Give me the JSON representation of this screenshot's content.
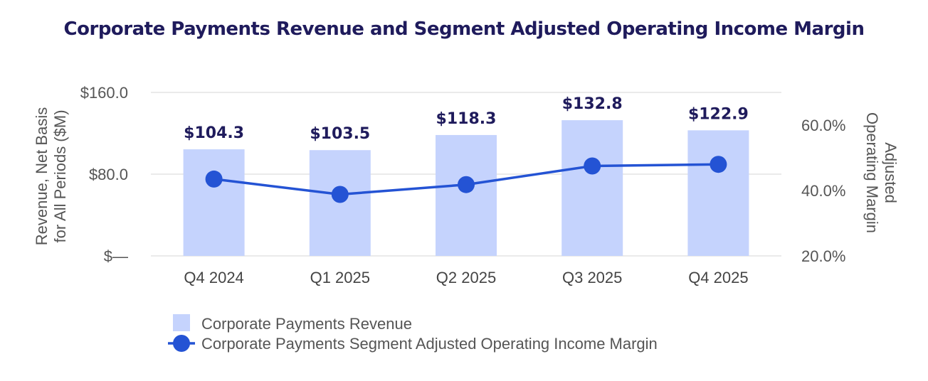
{
  "chart_data": {
    "type": "bar",
    "title": "Corporate Payments Revenue and Segment Adjusted Operating Income Margin",
    "categories": [
      "Q4 2024",
      "Q1 2025",
      "Q2 2025",
      "Q3 2025",
      "Q4 2025"
    ],
    "series": [
      {
        "name": "Corporate Payments Revenue",
        "type": "bar",
        "axis": "left",
        "values": [
          104.3,
          103.5,
          118.3,
          132.8,
          122.9
        ],
        "labels": [
          "$104.3",
          "$103.5",
          "$118.3",
          "$132.8",
          "$122.9"
        ],
        "color": "#c5d3fd"
      },
      {
        "name": "Corporate Payments Segment Adjusted Operating Income Margin",
        "type": "line",
        "axis": "right",
        "values": [
          43.5,
          38.8,
          41.8,
          47.5,
          48.0
        ],
        "color": "#2453d4"
      }
    ],
    "ylabel_left": "Revenue, Net Basis for All Periods ($M)",
    "ylabel_right": "Adjusted Operating Margin",
    "ylim_left": [
      0,
      160
    ],
    "ylim_right": [
      20,
      70
    ],
    "left_ticks": [
      {
        "value": 160,
        "label": "$160.0"
      },
      {
        "value": 80,
        "label": "$80.0"
      },
      {
        "value": 0,
        "label": "$—"
      }
    ],
    "right_ticks": [
      {
        "value": 60,
        "label": "60.0%"
      },
      {
        "value": 40,
        "label": "40.0%"
      },
      {
        "value": 20,
        "label": "20.0%"
      }
    ],
    "grid": true,
    "legend_position": "bottom-left"
  }
}
